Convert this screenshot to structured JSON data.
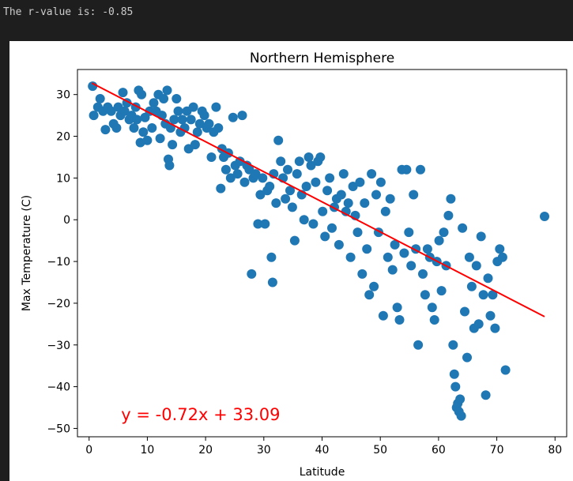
{
  "console": {
    "output_text": "The r-value is: -0.85"
  },
  "chart_data": {
    "type": "scatter",
    "title": "Northern Hemisphere",
    "xlabel": "Latitude",
    "ylabel": "Max Temperature (C)",
    "xlim": [
      -2,
      82
    ],
    "ylim": [
      -52,
      36
    ],
    "xticks": [
      0,
      10,
      20,
      30,
      40,
      50,
      60,
      70,
      80
    ],
    "yticks": [
      -50,
      -40,
      -30,
      -20,
      -10,
      0,
      10,
      20,
      30
    ],
    "grid": false,
    "point_color": "#1f77b4",
    "line_color": "#ff0000",
    "regression": {
      "slope": -0.72,
      "intercept": 33.09,
      "x_range": [
        0.5,
        78.2
      ]
    },
    "annotation": {
      "text": "y = -0.72x + 33.09",
      "x": 5.5,
      "y": -46.5,
      "color": "#ff0000"
    },
    "series": [
      {
        "points": [
          [
            0.6,
            32
          ],
          [
            0.8,
            25
          ],
          [
            1.5,
            27
          ],
          [
            1.9,
            29
          ],
          [
            2.4,
            26
          ],
          [
            2.8,
            21.6
          ],
          [
            3.2,
            27
          ],
          [
            3.8,
            26
          ],
          [
            4.2,
            23
          ],
          [
            4.7,
            22
          ],
          [
            5.0,
            27
          ],
          [
            5.4,
            25
          ],
          [
            5.8,
            30.5
          ],
          [
            6.1,
            26
          ],
          [
            6.5,
            28
          ],
          [
            6.9,
            24
          ],
          [
            7.3,
            25
          ],
          [
            7.7,
            22
          ],
          [
            8.0,
            27
          ],
          [
            8.2,
            24
          ],
          [
            8.5,
            31
          ],
          [
            8.8,
            18.5
          ],
          [
            9.0,
            30
          ],
          [
            9.3,
            21
          ],
          [
            9.6,
            24.5
          ],
          [
            10.0,
            19
          ],
          [
            10.4,
            26
          ],
          [
            10.8,
            22
          ],
          [
            11.1,
            28
          ],
          [
            11.5,
            26
          ],
          [
            11.9,
            30
          ],
          [
            12.2,
            19.5
          ],
          [
            12.5,
            25
          ],
          [
            12.8,
            29
          ],
          [
            13.1,
            23
          ],
          [
            13.4,
            31
          ],
          [
            13.6,
            14.5
          ],
          [
            13.8,
            13
          ],
          [
            14.0,
            22
          ],
          [
            14.3,
            18
          ],
          [
            14.6,
            24
          ],
          [
            15.0,
            29
          ],
          [
            15.3,
            26
          ],
          [
            15.7,
            21
          ],
          [
            16.0,
            24
          ],
          [
            16.4,
            22
          ],
          [
            16.8,
            26
          ],
          [
            17.1,
            17
          ],
          [
            17.5,
            24
          ],
          [
            17.9,
            27
          ],
          [
            18.2,
            18
          ],
          [
            18.6,
            21
          ],
          [
            19.0,
            23
          ],
          [
            19.4,
            26
          ],
          [
            19.8,
            25
          ],
          [
            20.2,
            22
          ],
          [
            20.6,
            23
          ],
          [
            21.0,
            15
          ],
          [
            21.4,
            21
          ],
          [
            21.8,
            27
          ],
          [
            22.2,
            22
          ],
          [
            22.6,
            7.5
          ],
          [
            22.8,
            17
          ],
          [
            23.1,
            15
          ],
          [
            23.5,
            12
          ],
          [
            23.9,
            16
          ],
          [
            24.3,
            10
          ],
          [
            24.7,
            24.5
          ],
          [
            25.1,
            13
          ],
          [
            25.5,
            11
          ],
          [
            25.9,
            14
          ],
          [
            26.3,
            25
          ],
          [
            26.7,
            9
          ],
          [
            27.1,
            13
          ],
          [
            27.5,
            12
          ],
          [
            27.9,
            -13
          ],
          [
            28.2,
            10
          ],
          [
            28.6,
            11
          ],
          [
            29.0,
            -1
          ],
          [
            29.4,
            6
          ],
          [
            29.8,
            10
          ],
          [
            30.2,
            -1
          ],
          [
            30.6,
            7
          ],
          [
            31.0,
            8
          ],
          [
            31.3,
            -9
          ],
          [
            31.5,
            -15
          ],
          [
            31.7,
            11
          ],
          [
            32.1,
            4
          ],
          [
            32.5,
            19
          ],
          [
            32.9,
            14
          ],
          [
            33.3,
            10
          ],
          [
            33.7,
            5
          ],
          [
            34.1,
            12
          ],
          [
            34.5,
            7
          ],
          [
            34.9,
            3
          ],
          [
            35.3,
            -5
          ],
          [
            35.7,
            11
          ],
          [
            36.1,
            14
          ],
          [
            36.5,
            6
          ],
          [
            36.9,
            0
          ],
          [
            37.3,
            8
          ],
          [
            37.7,
            15
          ],
          [
            38.1,
            13
          ],
          [
            38.5,
            -1
          ],
          [
            38.9,
            9
          ],
          [
            39.3,
            14
          ],
          [
            39.7,
            15
          ],
          [
            40.1,
            2
          ],
          [
            40.5,
            -4
          ],
          [
            40.9,
            7
          ],
          [
            41.3,
            10
          ],
          [
            41.7,
            -2
          ],
          [
            42.1,
            3
          ],
          [
            42.5,
            5
          ],
          [
            42.9,
            -6
          ],
          [
            43.3,
            6
          ],
          [
            43.7,
            11
          ],
          [
            44.1,
            2
          ],
          [
            44.5,
            4
          ],
          [
            44.9,
            -9
          ],
          [
            45.3,
            8
          ],
          [
            45.7,
            1
          ],
          [
            46.1,
            -3
          ],
          [
            46.5,
            9
          ],
          [
            46.9,
            -13
          ],
          [
            47.3,
            4
          ],
          [
            47.7,
            -7
          ],
          [
            48.1,
            -18
          ],
          [
            48.5,
            11
          ],
          [
            48.9,
            -16
          ],
          [
            49.3,
            6
          ],
          [
            49.7,
            -3
          ],
          [
            50.1,
            9
          ],
          [
            50.5,
            -23
          ],
          [
            50.9,
            2
          ],
          [
            51.3,
            -9
          ],
          [
            51.7,
            5
          ],
          [
            52.1,
            -12
          ],
          [
            52.5,
            -6
          ],
          [
            52.9,
            -21
          ],
          [
            53.3,
            -24
          ],
          [
            53.7,
            12
          ],
          [
            54.1,
            -8
          ],
          [
            54.5,
            12
          ],
          [
            54.9,
            -3
          ],
          [
            55.3,
            -11
          ],
          [
            55.7,
            6
          ],
          [
            56.1,
            -7
          ],
          [
            56.5,
            -30
          ],
          [
            56.9,
            12
          ],
          [
            57.3,
            -13
          ],
          [
            57.7,
            -18
          ],
          [
            58.1,
            -7
          ],
          [
            58.5,
            -9
          ],
          [
            58.9,
            -21
          ],
          [
            59.3,
            -24
          ],
          [
            59.7,
            -10
          ],
          [
            60.1,
            -5
          ],
          [
            60.5,
            -17
          ],
          [
            60.9,
            -3
          ],
          [
            61.3,
            -11
          ],
          [
            61.7,
            1
          ],
          [
            62.1,
            5
          ],
          [
            62.5,
            -30
          ],
          [
            62.7,
            -37
          ],
          [
            62.9,
            -40
          ],
          [
            63.1,
            -45
          ],
          [
            63.3,
            -44
          ],
          [
            63.5,
            -46
          ],
          [
            63.7,
            -43
          ],
          [
            63.9,
            -47
          ],
          [
            64.1,
            -2
          ],
          [
            64.5,
            -22
          ],
          [
            64.9,
            -33
          ],
          [
            65.3,
            -9
          ],
          [
            65.7,
            -16
          ],
          [
            66.1,
            -26
          ],
          [
            66.5,
            -11
          ],
          [
            66.9,
            -25
          ],
          [
            67.3,
            -4
          ],
          [
            67.7,
            -18
          ],
          [
            68.1,
            -42
          ],
          [
            68.5,
            -14
          ],
          [
            68.9,
            -23
          ],
          [
            69.3,
            -18
          ],
          [
            69.7,
            -26
          ],
          [
            70.1,
            -10
          ],
          [
            70.5,
            -7
          ],
          [
            71.0,
            -9
          ],
          [
            71.5,
            -36
          ],
          [
            78.2,
            0.8
          ]
        ]
      }
    ]
  }
}
